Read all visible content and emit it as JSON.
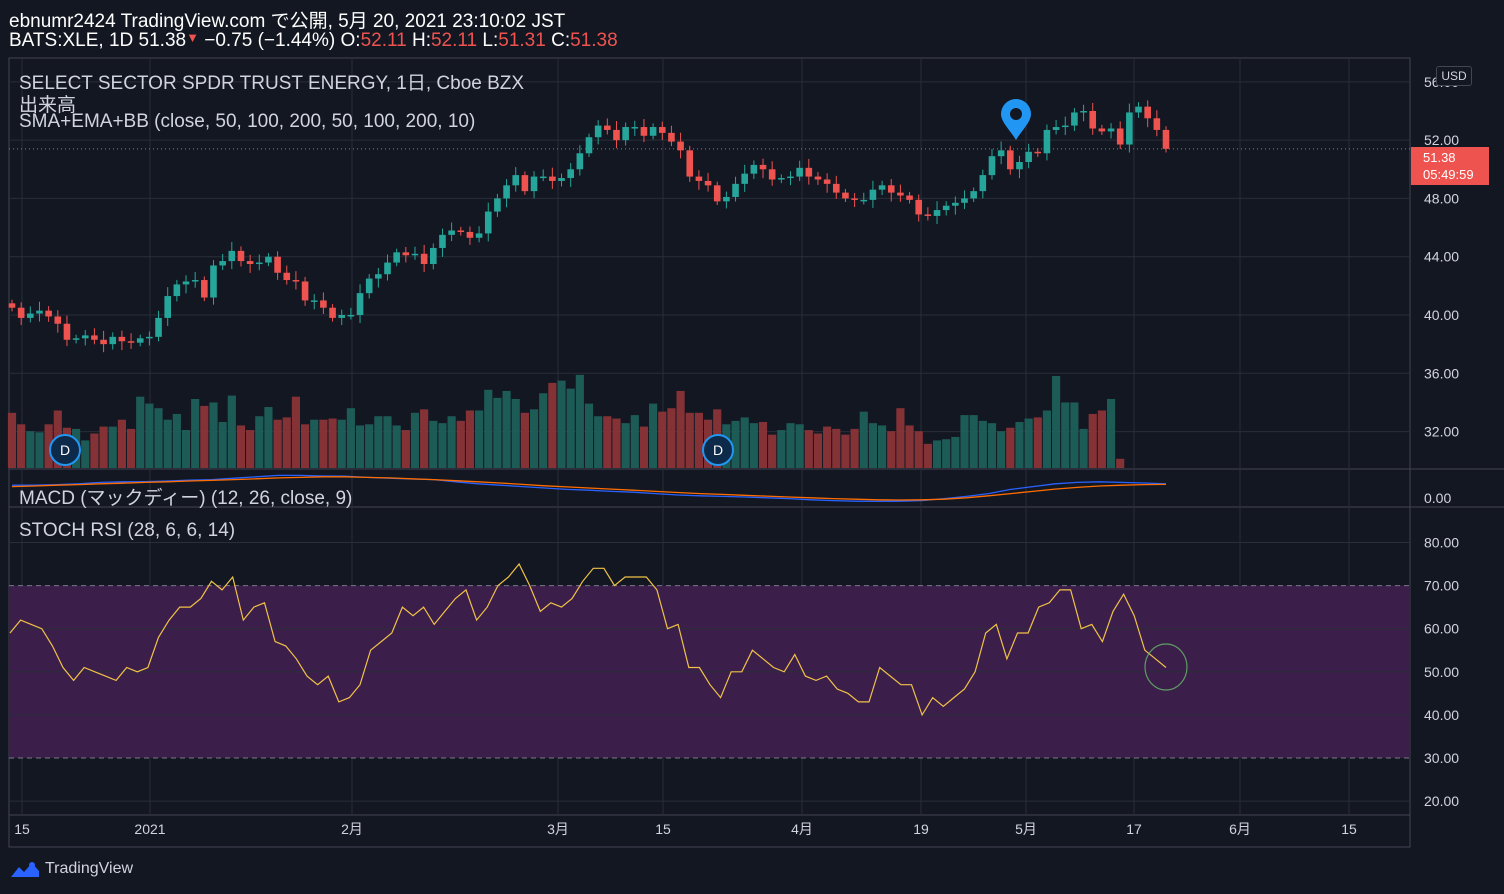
{
  "header": {
    "line1": "ebnumr2424 TradingView.com で公開, 5月 20, 2021 23:10:02 JST",
    "symbol": "BATS:XLE, 1D 51.38",
    "change": "−0.75 (−1.44%)",
    "o_label": "O:",
    "o_value": "52.11",
    "h_label": "H:",
    "h_value": "52.11",
    "l_label": "L:",
    "l_value": "51.31",
    "c_label": "C:",
    "c_value": "51.38"
  },
  "legends": {
    "title": "SELECT SECTOR SPDR TRUST ENERGY, 1日, Cboe BZX",
    "volume": "出来高",
    "ma": "SMA+EMA+BB (close, 50, 100, 200, 50, 100, 200, 10)",
    "macd": "MACD (マックディー) (12, 26, close, 9)",
    "stoch": "STOCH RSI (28, 6, 6, 14)"
  },
  "price_scale": {
    "currency": "USD",
    "last_price": "51.38",
    "countdown": "05:49:59"
  },
  "brand": "TradingView",
  "colors": {
    "up": "#26a69a",
    "down": "#ef5350",
    "background": "#131722",
    "grid": "#2a2e39",
    "macd": "#2962ff",
    "signal": "#ff6d00",
    "stoch": "#f0c247",
    "band": "#3c1e4b",
    "marker": "#2196f3"
  },
  "chart_data": [
    {
      "type": "candlestick",
      "title": "SELECT SECTOR SPDR TRUST ENERGY, 1日, Cboe BZX",
      "ylim": [
        29.5,
        57.5
      ],
      "y_ticks": [
        "56.00",
        "52.00",
        "48.00",
        "44.00",
        "40.00",
        "36.00",
        "32.00"
      ],
      "x_ticks": [
        "15",
        "2021",
        "2月",
        "3月",
        "15",
        "4月",
        "19",
        "5月",
        "17",
        "6月",
        "15"
      ],
      "close_series": [
        40.5,
        39.8,
        40.1,
        40.3,
        39.9,
        39.4,
        38.3,
        38.4,
        38.6,
        38.3,
        38.0,
        38.5,
        38.2,
        38.1,
        38.4,
        38.5,
        39.8,
        41.3,
        42.1,
        42.3,
        42.4,
        41.2,
        43.4,
        43.7,
        44.4,
        43.7,
        43.5,
        43.6,
        44.0,
        42.9,
        42.4,
        42.3,
        41.0,
        41.0,
        40.5,
        39.8,
        40.0,
        40.0,
        41.5,
        42.5,
        42.8,
        43.6,
        44.3,
        44.1,
        44.2,
        43.5,
        44.6,
        45.5,
        45.8,
        45.7,
        45.3,
        45.6,
        47.1,
        48.0,
        48.9,
        49.6,
        48.5,
        49.5,
        49.5,
        49.2,
        49.4,
        50.0,
        51.1,
        52.2,
        53.0,
        52.7,
        52.0,
        52.9,
        52.9,
        52.3,
        52.9,
        52.5,
        51.9,
        51.3,
        49.5,
        49.2,
        48.9,
        47.8,
        48.1,
        49.0,
        49.7,
        50.3,
        50.0,
        49.3,
        49.4,
        49.5,
        50.1,
        49.5,
        49.3,
        49.0,
        48.4,
        48.0,
        47.9,
        47.9,
        48.6,
        48.9,
        48.4,
        48.2,
        47.9,
        46.9,
        46.8,
        47.2,
        47.5,
        47.7,
        48.0,
        48.5,
        49.6,
        50.9,
        51.3,
        50.0,
        50.5,
        51.2,
        51.1,
        52.7,
        52.9,
        53.0,
        53.9,
        54.0,
        52.8,
        52.6,
        52.8,
        51.7,
        53.9,
        54.3,
        53.5,
        52.7,
        51.4
      ]
    },
    {
      "type": "bar",
      "title": "出来高",
      "values": [
        48,
        38,
        32,
        31,
        38,
        50,
        35,
        34,
        24,
        30,
        36,
        36,
        42,
        34,
        62,
        56,
        52,
        42,
        47,
        33,
        60,
        54,
        57,
        40,
        63,
        37,
        33,
        45,
        53,
        42,
        44,
        62,
        38,
        42,
        42,
        43,
        42,
        52,
        37,
        38,
        45,
        45,
        37,
        33,
        48,
        51,
        41,
        39,
        45,
        41,
        50,
        50,
        68,
        61,
        67,
        60,
        48,
        51,
        65,
        74,
        76,
        69,
        81,
        56,
        45,
        45,
        43,
        39,
        46,
        36,
        56,
        49,
        52,
        67,
        48,
        48,
        42,
        51,
        38,
        41,
        44,
        39,
        40,
        29,
        33,
        39,
        38,
        33,
        30,
        36,
        34,
        29,
        34,
        49,
        39,
        37,
        32,
        52,
        37,
        32,
        21,
        24,
        25,
        27,
        46,
        46,
        41,
        39,
        32,
        35,
        40,
        43,
        44,
        50,
        80,
        57,
        57,
        34,
        47,
        50,
        60,
        8
      ]
    },
    {
      "type": "line",
      "title": "MACD (マックディー) (12, 26, close, 9)",
      "y_ticks": [
        "0.00"
      ],
      "series": [
        {
          "values": [
            0.6,
            0.6,
            0.62,
            0.65,
            0.7,
            0.72,
            0.73,
            0.75,
            0.78,
            0.8,
            0.85,
            0.9,
            0.95,
            0.95,
            0.93,
            0.92,
            0.88,
            0.85,
            0.82,
            0.8,
            0.72,
            0.65,
            0.6,
            0.55,
            0.5,
            0.45,
            0.42,
            0.38,
            0.35,
            0.3,
            0.25,
            0.22,
            0.2,
            0.18,
            0.15,
            0.12,
            0.08,
            0.05,
            0.03,
            0.02,
            0.03,
            0.05,
            0.12,
            0.2,
            0.3,
            0.45,
            0.55,
            0.65,
            0.7,
            0.72,
            0.7,
            0.68,
            0.65
          ]
        },
        {
          "values": [
            0.55,
            0.57,
            0.6,
            0.62,
            0.65,
            0.67,
            0.7,
            0.72,
            0.75,
            0.77,
            0.8,
            0.83,
            0.86,
            0.88,
            0.9,
            0.9,
            0.88,
            0.86,
            0.83,
            0.8,
            0.76,
            0.72,
            0.68,
            0.63,
            0.58,
            0.54,
            0.5,
            0.46,
            0.42,
            0.38,
            0.34,
            0.3,
            0.27,
            0.24,
            0.21,
            0.18,
            0.15,
            0.12,
            0.1,
            0.08,
            0.07,
            0.08,
            0.1,
            0.15,
            0.22,
            0.3,
            0.38,
            0.46,
            0.52,
            0.57,
            0.6,
            0.62,
            0.63
          ]
        }
      ]
    },
    {
      "type": "line",
      "title": "STOCH RSI (28, 6, 6, 14)",
      "ylim": [
        17,
        88
      ],
      "y_ticks": [
        "80.00",
        "70.00",
        "60.00",
        "50.00",
        "40.00",
        "30.00",
        "20.00"
      ],
      "band": [
        30,
        70
      ],
      "series": [
        {
          "values": [
            59,
            62,
            61,
            60,
            56,
            51,
            48,
            51,
            50,
            49,
            48,
            51,
            50,
            51,
            58,
            62,
            65,
            65,
            67,
            71,
            69,
            72,
            62,
            65,
            66,
            57,
            56,
            53,
            49,
            47,
            49,
            43,
            44,
            47,
            55,
            57,
            59,
            65,
            63,
            65,
            61,
            64,
            67,
            69,
            62,
            65,
            70,
            72,
            75,
            70,
            64,
            66,
            65,
            67,
            71,
            74,
            74,
            70,
            72,
            72,
            72,
            69,
            60,
            61,
            51,
            51,
            47,
            44,
            50,
            50,
            55,
            53,
            51,
            50,
            54,
            49,
            48,
            49,
            46,
            45,
            43,
            43,
            51,
            49,
            47,
            47,
            40,
            44,
            42,
            44,
            46,
            50,
            59,
            61,
            53,
            59,
            59,
            65,
            66,
            69,
            69,
            60,
            61,
            57,
            64,
            68,
            63,
            55,
            53,
            51
          ]
        }
      ]
    }
  ]
}
